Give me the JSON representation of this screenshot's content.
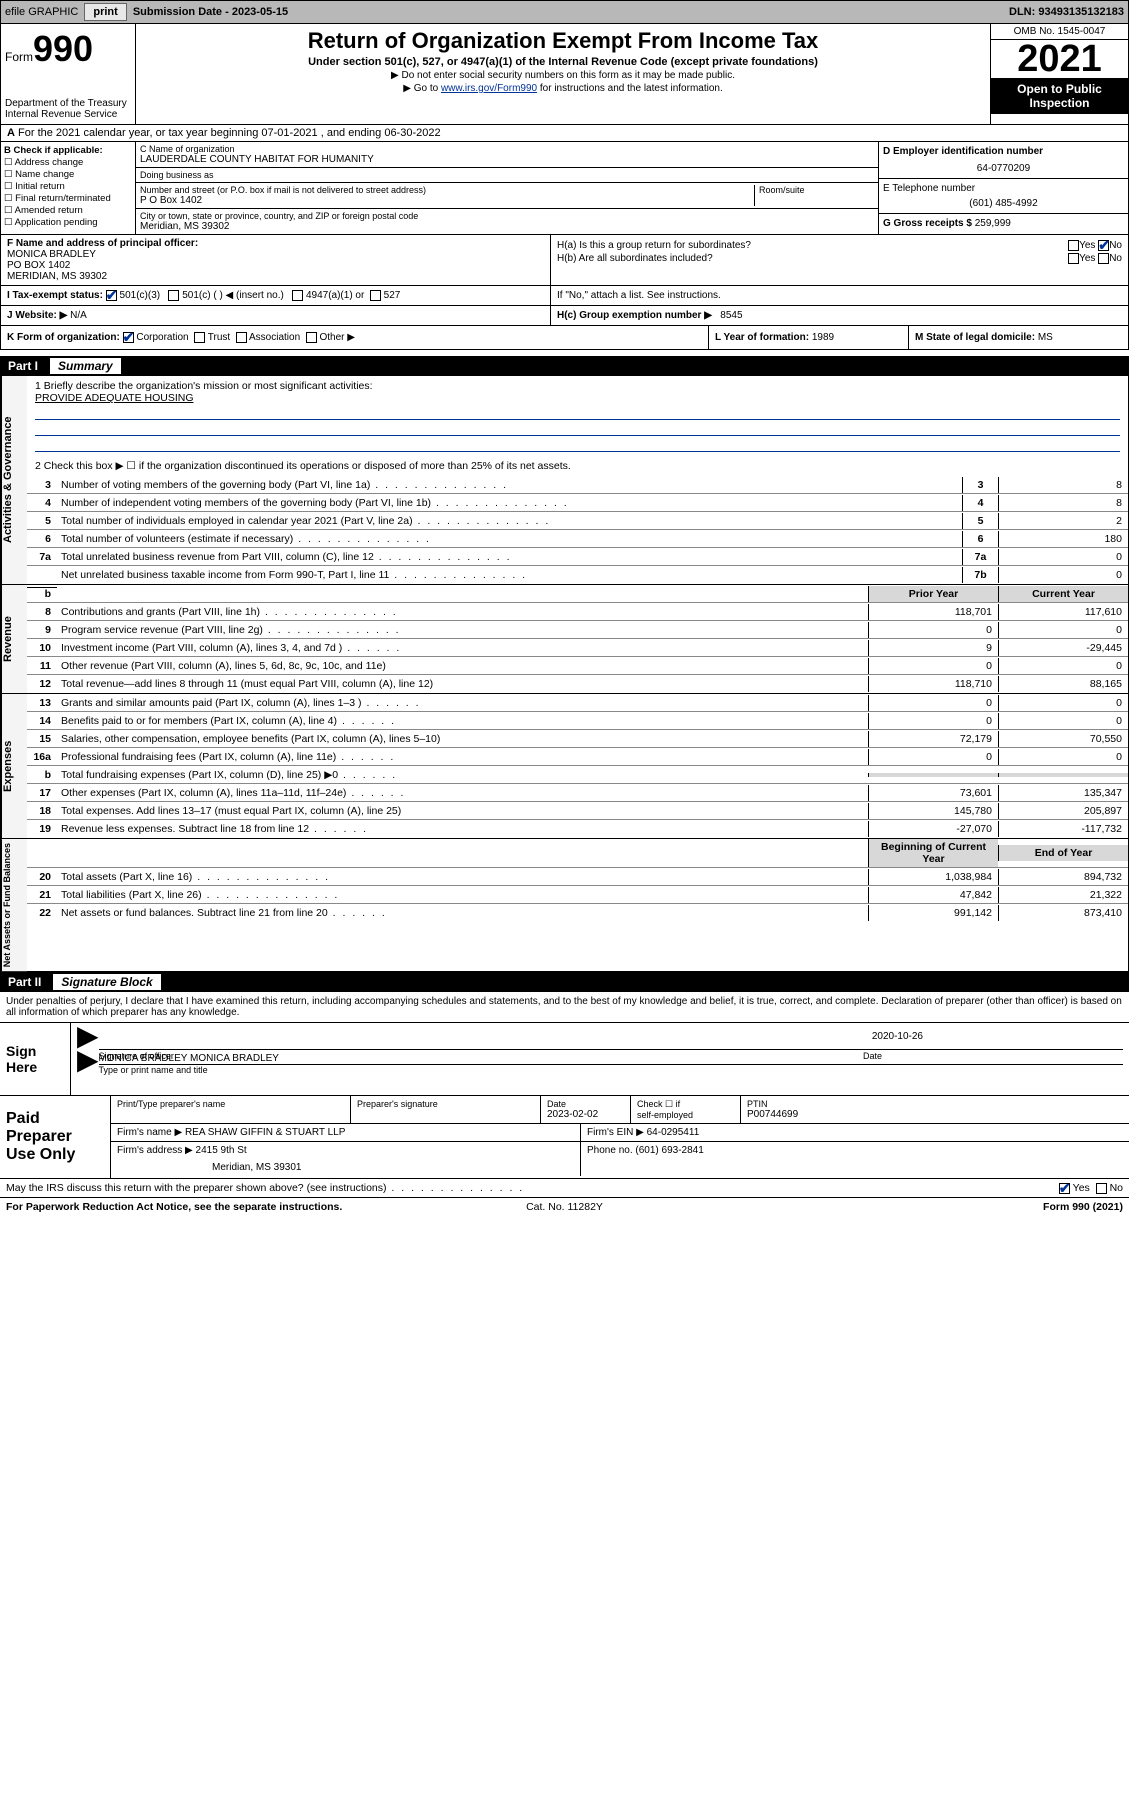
{
  "topbar": {
    "efile_label": "efile GRAPHIC",
    "print_btn": "print",
    "submission_label": "Submission Date - 2023-05-15",
    "dln_label": "DLN: 93493135132183"
  },
  "header": {
    "form_word": "Form",
    "form_num": "990",
    "dept": "Department of the Treasury",
    "irs": "Internal Revenue Service",
    "title": "Return of Organization Exempt From Income Tax",
    "subtitle": "Under section 501(c), 527, or 4947(a)(1) of the Internal Revenue Code (except private foundations)",
    "note1": "▶ Do not enter social security numbers on this form as it may be made public.",
    "note2_pre": "▶ Go to ",
    "note2_link": "www.irs.gov/Form990",
    "note2_post": " for instructions and the latest information.",
    "omb": "OMB No. 1545-0047",
    "year": "2021",
    "open_pub": "Open to Public Inspection"
  },
  "row_a": "For the 2021 calendar year, or tax year beginning 07-01-2021   , and ending 06-30-2022",
  "colB": {
    "title": "B Check if applicable:",
    "items": [
      "Address change",
      "Name change",
      "Initial return",
      "Final return/terminated",
      "Amended return",
      "Application pending"
    ]
  },
  "colC": {
    "name_lbl": "C Name of organization",
    "name": "LAUDERDALE COUNTY HABITAT FOR HUMANITY",
    "dba_lbl": "Doing business as",
    "dba": "",
    "street_lbl": "Number and street (or P.O. box if mail is not delivered to street address)",
    "room_lbl": "Room/suite",
    "street": "P O Box 1402",
    "city_lbl": "City or town, state or province, country, and ZIP or foreign postal code",
    "city": "Meridian, MS  39302"
  },
  "colD": {
    "ein_lbl": "D Employer identification number",
    "ein": "64-0770209",
    "tel_lbl": "E Telephone number",
    "tel": "(601) 485-4992",
    "gross_lbl": "G Gross receipts $",
    "gross": "259,999"
  },
  "blockF": {
    "lbl": "F  Name and address of principal officer:",
    "name": "MONICA BRADLEY",
    "addr1": "PO BOX 1402",
    "addr2": "MERIDIAN, MS  39302"
  },
  "blockH": {
    "ha": "H(a)  Is this a group return for subordinates?",
    "hb": "H(b)  Are all subordinates included?",
    "hb_note": "If \"No,\" attach a list. See instructions.",
    "hc": "H(c)  Group exemption number ▶",
    "hc_val": "8545",
    "yes": "Yes",
    "no": "No"
  },
  "row_i": {
    "lbl": "I   Tax-exempt status:",
    "opt1": "501(c)(3)",
    "opt2": "501(c) (  ) ◀ (insert no.)",
    "opt3": "4947(a)(1) or",
    "opt4": "527"
  },
  "row_j": {
    "lbl": "J   Website: ▶",
    "val": "N/A"
  },
  "row_k": {
    "lbl": "K Form of organization:",
    "opts": [
      "Corporation",
      "Trust",
      "Association",
      "Other ▶"
    ],
    "l_lbl": "L Year of formation:",
    "l_val": "1989",
    "m_lbl": "M State of legal domicile:",
    "m_val": "MS"
  },
  "part1": {
    "num": "Part I",
    "title": "Summary"
  },
  "mission": {
    "q1": "1  Briefly describe the organization's mission or most significant activities:",
    "text": "PROVIDE ADEQUATE HOUSING",
    "q2": "2  Check this box ▶ ☐  if the organization discontinued its operations or disposed of more than 25% of its net assets."
  },
  "gov_rows": [
    {
      "n": "3",
      "d": "Number of voting members of the governing body (Part VI, line 1a)",
      "box": "3",
      "v": "8"
    },
    {
      "n": "4",
      "d": "Number of independent voting members of the governing body (Part VI, line 1b)",
      "box": "4",
      "v": "8"
    },
    {
      "n": "5",
      "d": "Total number of individuals employed in calendar year 2021 (Part V, line 2a)",
      "box": "5",
      "v": "2"
    },
    {
      "n": "6",
      "d": "Total number of volunteers (estimate if necessary)",
      "box": "6",
      "v": "180"
    },
    {
      "n": "7a",
      "d": "Total unrelated business revenue from Part VIII, column (C), line 12",
      "box": "7a",
      "v": "0"
    },
    {
      "n": "",
      "d": "Net unrelated business taxable income from Form 990-T, Part I, line 11",
      "box": "7b",
      "v": "0"
    }
  ],
  "two_col_hdr": {
    "prior": "Prior Year",
    "curr": "Current Year"
  },
  "rev_rows": [
    {
      "n": "8",
      "d": "Contributions and grants (Part VIII, line 1h)",
      "p": "118,701",
      "c": "117,610"
    },
    {
      "n": "9",
      "d": "Program service revenue (Part VIII, line 2g)",
      "p": "0",
      "c": "0"
    },
    {
      "n": "10",
      "d": "Investment income (Part VIII, column (A), lines 3, 4, and 7d )",
      "p": "9",
      "c": "-29,445"
    },
    {
      "n": "11",
      "d": "Other revenue (Part VIII, column (A), lines 5, 6d, 8c, 9c, 10c, and 11e)",
      "p": "0",
      "c": "0"
    },
    {
      "n": "12",
      "d": "Total revenue—add lines 8 through 11 (must equal Part VIII, column (A), line 12)",
      "p": "118,710",
      "c": "88,165"
    }
  ],
  "exp_rows": [
    {
      "n": "13",
      "d": "Grants and similar amounts paid (Part IX, column (A), lines 1–3 )",
      "p": "0",
      "c": "0"
    },
    {
      "n": "14",
      "d": "Benefits paid to or for members (Part IX, column (A), line 4)",
      "p": "0",
      "c": "0"
    },
    {
      "n": "15",
      "d": "Salaries, other compensation, employee benefits (Part IX, column (A), lines 5–10)",
      "p": "72,179",
      "c": "70,550"
    },
    {
      "n": "16a",
      "d": "Professional fundraising fees (Part IX, column (A), line 11e)",
      "p": "0",
      "c": "0"
    },
    {
      "n": "b",
      "d": "Total fundraising expenses (Part IX, column (D), line 25) ▶0",
      "p": "",
      "c": "",
      "grey": true
    },
    {
      "n": "17",
      "d": "Other expenses (Part IX, column (A), lines 11a–11d, 11f–24e)",
      "p": "73,601",
      "c": "135,347"
    },
    {
      "n": "18",
      "d": "Total expenses. Add lines 13–17 (must equal Part IX, column (A), line 25)",
      "p": "145,780",
      "c": "205,897"
    },
    {
      "n": "19",
      "d": "Revenue less expenses. Subtract line 18 from line 12",
      "p": "-27,070",
      "c": "-117,732"
    }
  ],
  "net_hdr": {
    "beg": "Beginning of Current Year",
    "end": "End of Year"
  },
  "net_rows": [
    {
      "n": "20",
      "d": "Total assets (Part X, line 16)",
      "p": "1,038,984",
      "c": "894,732"
    },
    {
      "n": "21",
      "d": "Total liabilities (Part X, line 26)",
      "p": "47,842",
      "c": "21,322"
    },
    {
      "n": "22",
      "d": "Net assets or fund balances. Subtract line 21 from line 20",
      "p": "991,142",
      "c": "873,410"
    }
  ],
  "side_labels": {
    "gov": "Activities & Governance",
    "rev": "Revenue",
    "exp": "Expenses",
    "net": "Net Assets or Fund Balances"
  },
  "part2": {
    "num": "Part II",
    "title": "Signature Block"
  },
  "penalties": "Under penalties of perjury, I declare that I have examined this return, including accompanying schedules and statements, and to the best of my knowledge and belief, it is true, correct, and complete. Declaration of preparer (other than officer) is based on all information of which preparer has any knowledge.",
  "sign": {
    "lbl": "Sign Here",
    "sig_lbl": "Signature of officer",
    "date_lbl": "Date",
    "date": "2020-10-26",
    "name": "MONICA BRADLEY  MONICA BRADLEY",
    "name_lbl": "Type or print name and title"
  },
  "prep": {
    "lbl": "Paid Preparer Use Only",
    "h1": "Print/Type preparer's name",
    "h2": "Preparer's signature",
    "h3": "Date",
    "date": "2023-02-02",
    "h4_pre": "Check ☐ if",
    "h4": "self-employed",
    "h5": "PTIN",
    "ptin": "P00744699",
    "firm_lbl": "Firm's name    ▶",
    "firm": "REA SHAW GIFFIN & STUART LLP",
    "ein_lbl": "Firm's EIN ▶",
    "ein": "64-0295411",
    "addr_lbl": "Firm's address ▶",
    "addr1": "2415 9th St",
    "addr2": "Meridian, MS  39301",
    "phone_lbl": "Phone no.",
    "phone": "(601) 693-2841"
  },
  "discuss": {
    "q": "May the IRS discuss this return with the preparer shown above? (see instructions)",
    "yes": "Yes",
    "no": "No"
  },
  "footer": {
    "l": "For Paperwork Reduction Act Notice, see the separate instructions.",
    "c": "Cat. No. 11282Y",
    "r": "Form 990 (2021)"
  }
}
